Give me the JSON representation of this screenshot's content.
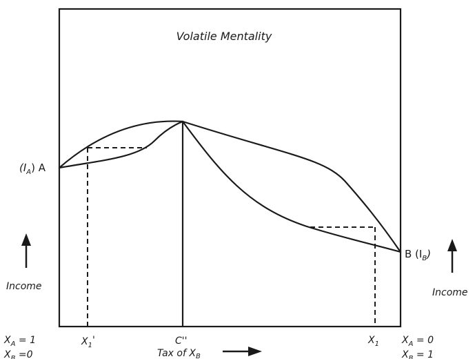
{
  "title": "Volatile Mentality",
  "endpoints": {
    "left_prefix": "(I",
    "left_sub": "A",
    "left_suffix": ") A",
    "right_prefix": "B (I",
    "right_sub": "B",
    "right_suffix": ")"
  },
  "left_axis": {
    "label": "Income"
  },
  "right_axis": {
    "label": "Income"
  },
  "x_axis": {
    "label_main": "Tax of X",
    "label_sub": "B",
    "ticks": {
      "x1_prime_main": "X",
      "x1_prime_sub": "1",
      "x1_prime_mark": "'",
      "c_double_prime": "C''",
      "x1_main": "X",
      "x1_sub": "1"
    }
  },
  "corners": {
    "left": [
      {
        "main": "X",
        "sub": "A",
        "value": " = 1"
      },
      {
        "main": "X",
        "sub": "B",
        "value": " =0"
      }
    ],
    "right": [
      {
        "main": "X",
        "sub": "A",
        "value": " = 0"
      },
      {
        "main": "X",
        "sub": "B",
        "value": " = 1"
      }
    ]
  }
}
